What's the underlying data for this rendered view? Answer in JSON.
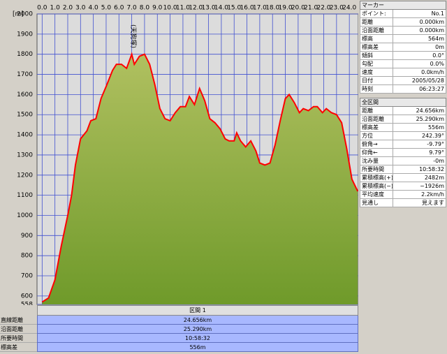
{
  "chart_data": {
    "type": "area",
    "y_unit": "[m]",
    "annotation": "(天狗塚)",
    "annotation_x": 7.1,
    "x": [
      0,
      0.5,
      1.0,
      1.5,
      2.0,
      2.3,
      2.6,
      3.0,
      3.5,
      3.8,
      4.2,
      4.6,
      5.0,
      5.5,
      5.8,
      6.2,
      6.6,
      7.0,
      7.2,
      7.6,
      8.0,
      8.4,
      8.8,
      9.2,
      9.6,
      10.0,
      10.4,
      10.8,
      11.2,
      11.5,
      11.9,
      12.3,
      12.7,
      13.1,
      13.5,
      13.9,
      14.3,
      14.6,
      15.0,
      15.2,
      15.5,
      15.9,
      16.3,
      16.7,
      17.0,
      17.4,
      17.8,
      18.2,
      18.6,
      19.0,
      19.3,
      19.7,
      20.1,
      20.4,
      20.8,
      21.2,
      21.5,
      21.9,
      22.2,
      22.6,
      23.0,
      23.4,
      23.8,
      24.2,
      24.5,
      24.656
    ],
    "values": [
      570,
      590,
      680,
      850,
      1000,
      1100,
      1250,
      1380,
      1420,
      1470,
      1480,
      1580,
      1640,
      1720,
      1750,
      1750,
      1730,
      1800,
      1750,
      1790,
      1800,
      1750,
      1650,
      1530,
      1480,
      1470,
      1510,
      1540,
      1540,
      1590,
      1550,
      1630,
      1570,
      1480,
      1460,
      1430,
      1380,
      1370,
      1370,
      1410,
      1370,
      1340,
      1370,
      1320,
      1260,
      1250,
      1260,
      1350,
      1470,
      1580,
      1600,
      1560,
      1510,
      1530,
      1520,
      1540,
      1540,
      1510,
      1530,
      1510,
      1500,
      1460,
      1330,
      1180,
      1140,
      1120
    ],
    "line_color": "#ff0000",
    "fill_color": "#6f9a2a",
    "grid": true,
    "xlim": [
      -0.4,
      24.7
    ],
    "ylim": [
      558,
      2000
    ],
    "xticks": [
      {
        "value": 0,
        "label": "0.0"
      },
      {
        "value": 1,
        "label": "1.0"
      },
      {
        "value": 2,
        "label": "2.0"
      },
      {
        "value": 3,
        "label": "3.0"
      },
      {
        "value": 4,
        "label": "4.0"
      },
      {
        "value": 5,
        "label": "5.0"
      },
      {
        "value": 6,
        "label": "6.0"
      },
      {
        "value": 7,
        "label": "7.0"
      },
      {
        "value": 8,
        "label": "8.0"
      },
      {
        "value": 9,
        "label": "9.0"
      },
      {
        "value": 10,
        "label": "10.0"
      },
      {
        "value": 11,
        "label": "11.0"
      },
      {
        "value": 12,
        "label": "12.0"
      },
      {
        "value": 13,
        "label": "13.0"
      },
      {
        "value": 14,
        "label": "14.0"
      },
      {
        "value": 15,
        "label": "15.0"
      },
      {
        "value": 16,
        "label": "16.0"
      },
      {
        "value": 17,
        "label": "17.0"
      },
      {
        "value": 18,
        "label": "18.0"
      },
      {
        "value": 19,
        "label": "19.0"
      },
      {
        "value": 20,
        "label": "20.0"
      },
      {
        "value": 21,
        "label": "21.0"
      },
      {
        "value": 22,
        "label": "22.0"
      },
      {
        "value": 23,
        "label": "23.0"
      },
      {
        "value": 24,
        "label": "24.0"
      }
    ],
    "yticks": [
      558,
      600,
      700,
      800,
      900,
      1000,
      1100,
      1200,
      1300,
      1400,
      1500,
      1600,
      1700,
      1800,
      1900,
      2000
    ]
  },
  "marker": {
    "title": "マーカー",
    "rows": [
      [
        "ポイント:",
        "No.1"
      ],
      [
        "距離",
        "0.000km"
      ],
      [
        "沿面距離",
        "0.000km"
      ],
      [
        "標高",
        "564m"
      ],
      [
        "標高差",
        "0m"
      ],
      [
        "傾斜",
        "0.0°"
      ],
      [
        "勾配",
        "0.0%"
      ],
      [
        "速度",
        "0.0km/h"
      ],
      [
        "日付",
        "2005/05/28"
      ],
      [
        "時刻",
        "06:23:27"
      ]
    ]
  },
  "total": {
    "title": "全区間",
    "rows": [
      [
        "距離",
        "24.656km"
      ],
      [
        "沿面距離",
        "25.290km"
      ],
      [
        "標高差",
        "556m"
      ],
      [
        "方位",
        "242.39°"
      ],
      [
        "俯角→",
        "-9.79°"
      ],
      [
        "仰角←",
        "9.79°"
      ],
      [
        "沈み量",
        "-0m"
      ],
      [
        "所要時間",
        "10:58:32"
      ],
      [
        "累積標高(+)",
        "2482m"
      ],
      [
        "累積標高(−)",
        "−1926m"
      ],
      [
        "平均速度",
        "2.2km/h"
      ],
      [
        "見通し",
        "見えます"
      ]
    ]
  },
  "section": {
    "header": "区間 1",
    "rows": [
      [
        "直線距離",
        "24.656km"
      ],
      [
        "沿面距離",
        "25.290km"
      ],
      [
        "所要時間",
        "10:58:32"
      ],
      [
        "標高差",
        "556m"
      ]
    ]
  }
}
